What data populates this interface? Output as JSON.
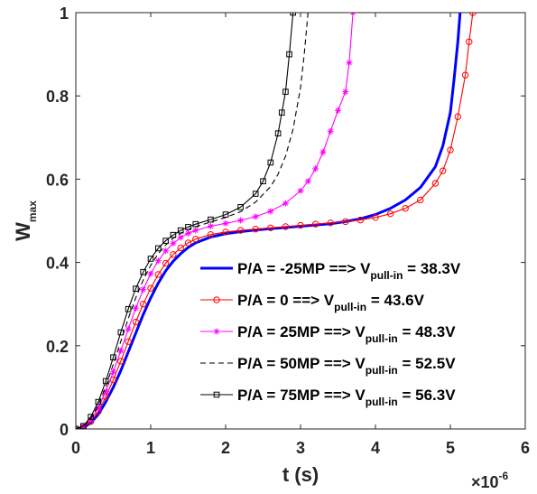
{
  "chart_data": {
    "type": "line",
    "xlabel": "t (s)",
    "ylabel": "W",
    "ylabel_subscript": "max",
    "x_exponent_label": "×10",
    "x_exponent_power": "-6",
    "xlim": [
      0,
      6
    ],
    "ylim": [
      0,
      1
    ],
    "xticks": [
      "0",
      "1",
      "2",
      "3",
      "4",
      "5",
      "6"
    ],
    "yticks": [
      "0",
      "0.2",
      "0.4",
      "0.6",
      "0.8",
      "1"
    ],
    "grid": false,
    "legend_position": "lower-right",
    "series": [
      {
        "name": "P/A = -25MP ==> V",
        "name_subscript": "pull-in",
        "name_suffix": " = 38.3V",
        "color": "#0000ff",
        "line_style": "solid",
        "marker": "none",
        "x": [
          0,
          0.1,
          0.2,
          0.3,
          0.4,
          0.5,
          0.6,
          0.7,
          0.8,
          0.9,
          1.0,
          1.1,
          1.2,
          1.3,
          1.4,
          1.5,
          1.6,
          1.8,
          2.0,
          2.2,
          2.4,
          2.6,
          2.8,
          3.0,
          3.2,
          3.4,
          3.6,
          3.8,
          4.0,
          4.2,
          4.4,
          4.6,
          4.8,
          4.9,
          5.0,
          5.05,
          5.1,
          5.13
        ],
        "y": [
          0,
          0.003,
          0.015,
          0.035,
          0.065,
          0.1,
          0.14,
          0.185,
          0.23,
          0.275,
          0.315,
          0.35,
          0.38,
          0.403,
          0.421,
          0.436,
          0.447,
          0.461,
          0.469,
          0.474,
          0.478,
          0.481,
          0.484,
          0.487,
          0.49,
          0.493,
          0.498,
          0.505,
          0.515,
          0.53,
          0.55,
          0.58,
          0.63,
          0.68,
          0.76,
          0.84,
          0.93,
          1.0
        ]
      },
      {
        "name": "P/A = 0 ==> V",
        "name_subscript": "pull-in",
        "name_suffix": " = 43.6V",
        "color": "#ff0000",
        "line_style": "solid",
        "marker": "circle",
        "x": [
          0,
          0.1,
          0.2,
          0.3,
          0.4,
          0.5,
          0.6,
          0.7,
          0.8,
          0.9,
          1.0,
          1.1,
          1.2,
          1.3,
          1.4,
          1.5,
          1.6,
          1.8,
          2.0,
          2.2,
          2.4,
          2.6,
          2.8,
          3.0,
          3.2,
          3.4,
          3.6,
          3.8,
          4.0,
          4.2,
          4.4,
          4.6,
          4.8,
          4.9,
          5.0,
          5.1,
          5.2,
          5.25,
          5.3
        ],
        "y": [
          0,
          0.004,
          0.018,
          0.042,
          0.077,
          0.118,
          0.163,
          0.21,
          0.257,
          0.3,
          0.338,
          0.371,
          0.398,
          0.419,
          0.435,
          0.447,
          0.456,
          0.467,
          0.473,
          0.477,
          0.48,
          0.483,
          0.486,
          0.489,
          0.492,
          0.495,
          0.498,
          0.502,
          0.508,
          0.517,
          0.53,
          0.55,
          0.59,
          0.62,
          0.67,
          0.75,
          0.85,
          0.93,
          1.0
        ]
      },
      {
        "name": "P/A = 25MP ==> V",
        "name_subscript": "pull-in",
        "name_suffix": " = 48.3V",
        "color": "#ff00ff",
        "line_style": "solid",
        "marker": "asterisk",
        "x": [
          0,
          0.1,
          0.2,
          0.3,
          0.4,
          0.5,
          0.6,
          0.7,
          0.8,
          0.9,
          1.0,
          1.1,
          1.2,
          1.3,
          1.4,
          1.5,
          1.6,
          1.8,
          2.0,
          2.2,
          2.4,
          2.6,
          2.8,
          3.0,
          3.1,
          3.2,
          3.3,
          3.4,
          3.5,
          3.6,
          3.65,
          3.7
        ],
        "y": [
          0,
          0.005,
          0.022,
          0.05,
          0.09,
          0.137,
          0.188,
          0.24,
          0.29,
          0.335,
          0.373,
          0.404,
          0.428,
          0.446,
          0.46,
          0.47,
          0.477,
          0.487,
          0.494,
          0.501,
          0.51,
          0.523,
          0.542,
          0.572,
          0.595,
          0.625,
          0.665,
          0.715,
          0.765,
          0.81,
          0.88,
          1.0
        ]
      },
      {
        "name": "P/A = 50MP ==> V",
        "name_subscript": "pull-in",
        "name_suffix": " = 52.5V",
        "color": "#000000",
        "line_style": "dashed",
        "marker": "none",
        "x": [
          0,
          0.1,
          0.2,
          0.3,
          0.4,
          0.5,
          0.6,
          0.7,
          0.8,
          0.9,
          1.0,
          1.1,
          1.2,
          1.3,
          1.4,
          1.5,
          1.6,
          1.8,
          2.0,
          2.2,
          2.4,
          2.6,
          2.7,
          2.8,
          2.9,
          3.0,
          3.05,
          3.1
        ],
        "y": [
          0,
          0.006,
          0.025,
          0.057,
          0.102,
          0.155,
          0.21,
          0.265,
          0.315,
          0.358,
          0.393,
          0.421,
          0.442,
          0.458,
          0.47,
          0.479,
          0.486,
          0.497,
          0.508,
          0.522,
          0.545,
          0.582,
          0.612,
          0.655,
          0.72,
          0.82,
          0.9,
          1.0
        ]
      },
      {
        "name": "P/A = 75MP ==> V",
        "name_subscript": "pull-in",
        "name_suffix": " = 56.3V",
        "color": "#000000",
        "line_style": "solid",
        "marker": "square",
        "x": [
          0,
          0.1,
          0.2,
          0.3,
          0.4,
          0.5,
          0.6,
          0.7,
          0.8,
          0.9,
          1.0,
          1.1,
          1.2,
          1.3,
          1.4,
          1.5,
          1.6,
          1.8,
          2.0,
          2.2,
          2.4,
          2.5,
          2.6,
          2.7,
          2.75,
          2.8,
          2.85,
          2.9
        ],
        "y": [
          0,
          0.007,
          0.029,
          0.065,
          0.115,
          0.172,
          0.232,
          0.288,
          0.337,
          0.377,
          0.409,
          0.434,
          0.452,
          0.466,
          0.477,
          0.485,
          0.492,
          0.503,
          0.515,
          0.533,
          0.565,
          0.595,
          0.64,
          0.71,
          0.76,
          0.81,
          0.9,
          1.0
        ]
      }
    ]
  }
}
